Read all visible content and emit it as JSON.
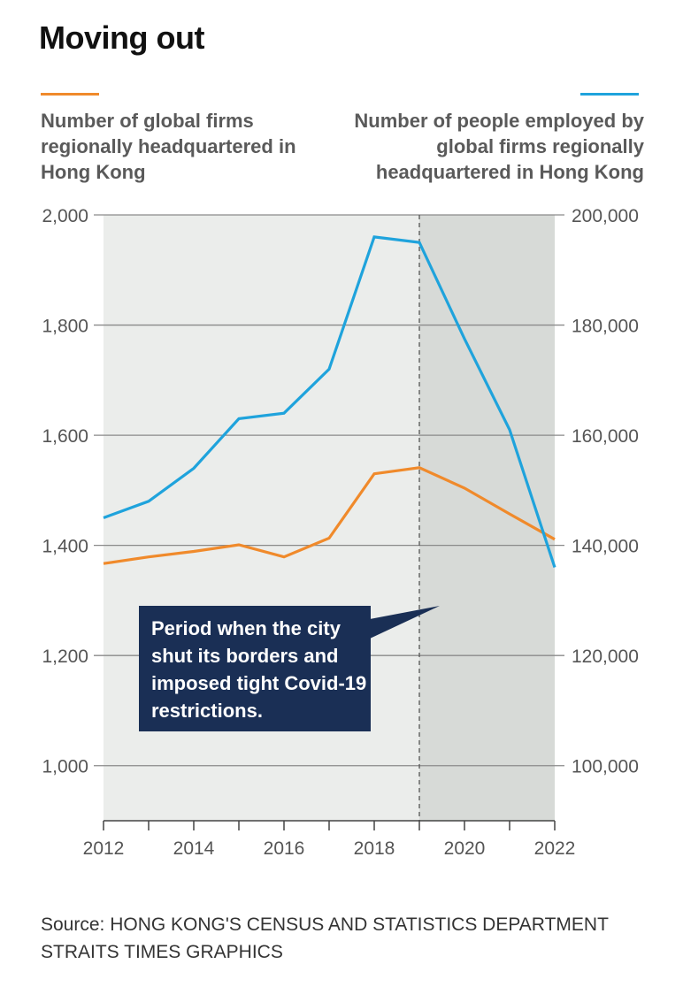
{
  "title": "Moving out",
  "legend": {
    "left": {
      "label": "Number of global firms regionally headquartered in Hong Kong",
      "color": "#f08a2b"
    },
    "right": {
      "label": "Number of people employed by global firms regionally headquartered in Hong Kong",
      "color": "#1fa3dc"
    }
  },
  "annotation": "Period when the city shut its borders and imposed tight Covid-19 restrictions.",
  "source": {
    "line1": "Source: HONG KONG'S CENSUS AND STATISTICS DEPARTMENT",
    "line2": "STRAITS TIMES GRAPHICS"
  },
  "chart_data": {
    "type": "line",
    "x": [
      2012,
      2013,
      2014,
      2015,
      2016,
      2017,
      2018,
      2019,
      2020,
      2021,
      2022
    ],
    "x_tick_labels": [
      "2012",
      "2014",
      "2016",
      "2018",
      "2020",
      "2022"
    ],
    "left_axis": {
      "ylim": [
        900,
        2000
      ],
      "ticks": [
        1000,
        1200,
        1400,
        1600,
        1800,
        2000
      ],
      "tick_labels": [
        "1,000",
        "1,200",
        "1,400",
        "1,600",
        "1,800",
        "2,000"
      ]
    },
    "right_axis": {
      "ylim": [
        90000,
        200000
      ],
      "ticks": [
        100000,
        120000,
        140000,
        160000,
        180000,
        200000
      ],
      "tick_labels": [
        "100,000",
        "120,000",
        "140,000",
        "160,000",
        "180,000",
        "200,000"
      ]
    },
    "series": [
      {
        "axis": "left",
        "color": "#f08a2b",
        "values": [
          1367,
          1379,
          1389,
          1401,
          1379,
          1413,
          1530,
          1541,
          1504,
          1457,
          1411
        ]
      },
      {
        "axis": "right",
        "color": "#1fa3dc",
        "values": [
          145000,
          148000,
          154000,
          163000,
          164000,
          172000,
          196000,
          195000,
          177500,
          161000,
          136000
        ]
      }
    ],
    "shaded_period": [
      2019,
      2022
    ],
    "grid": true,
    "colors": {
      "background_fill": "#ebedeb",
      "covid_fill": "#d7dad7",
      "grid": "#8a8a8a",
      "tick_label": "#555555"
    }
  }
}
